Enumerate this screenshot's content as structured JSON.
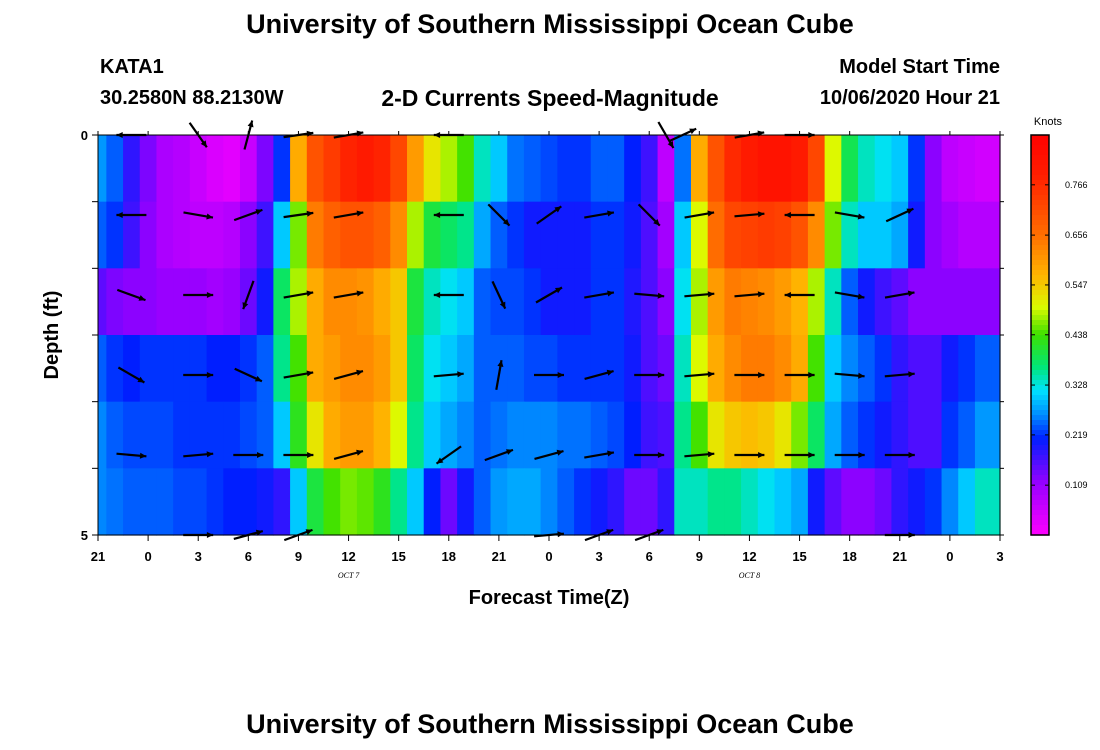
{
  "header": {
    "title": "University of Southern Mississippi Ocean Cube",
    "station": "KATA1",
    "coordinates": "30.2580N 88.2130W",
    "subtitle": "2-D Currents Speed-Magnitude",
    "model_start_label": "Model Start Time",
    "model_start_value": "10/06/2020 Hour 21"
  },
  "footer": {
    "title": "University of Southern Mississippi Ocean Cube"
  },
  "chart_data": {
    "type": "heatmap",
    "title": "2-D Currents Speed-Magnitude",
    "xlabel": "Forecast Time(Z)",
    "ylabel": "Depth (ft)",
    "ylim": [
      0,
      5
    ],
    "y_tick_labels": [
      "0",
      "5"
    ],
    "x_tick_labels": [
      "21",
      "0",
      "3",
      "6",
      "9",
      "12",
      "15",
      "18",
      "21",
      "0",
      "3",
      "6",
      "9",
      "12",
      "15",
      "18",
      "21",
      "0",
      "3"
    ],
    "date_labels": [
      {
        "text": "OCT 7",
        "tick_index": 5
      },
      {
        "text": "OCT 8",
        "tick_index": 13
      }
    ],
    "colorbar": {
      "label": "Knots",
      "range": [
        0,
        0.875
      ],
      "ticks": [
        "0.109",
        "0.219",
        "0.328",
        "0.438",
        "0.547",
        "0.656",
        "0.766"
      ]
    },
    "hours": [
      21,
      22,
      23,
      0,
      1,
      2,
      3,
      4,
      5,
      6,
      7,
      8,
      9,
      10,
      11,
      12,
      13,
      14,
      15,
      16,
      17,
      18,
      19,
      20,
      21,
      22,
      23,
      0,
      1,
      2,
      3,
      4,
      5,
      6,
      7,
      8,
      9,
      10,
      11,
      12,
      13,
      14,
      15,
      16,
      17,
      18,
      19,
      20,
      21,
      22,
      23,
      0,
      1,
      2,
      3
    ],
    "depth_rows": [
      0,
      1,
      2,
      3,
      4,
      5
    ],
    "speed_knots": [
      [
        0.27,
        0.24,
        0.18,
        0.13,
        0.09,
        0.08,
        0.06,
        0.04,
        0.03,
        0.06,
        0.13,
        0.22,
        0.58,
        0.7,
        0.74,
        0.78,
        0.8,
        0.78,
        0.72,
        0.6,
        0.52,
        0.48,
        0.44,
        0.34,
        0.3,
        0.25,
        0.24,
        0.23,
        0.22,
        0.22,
        0.24,
        0.24,
        0.21,
        0.17,
        0.07,
        0.25,
        0.58,
        0.7,
        0.77,
        0.8,
        0.82,
        0.82,
        0.8,
        0.72,
        0.5,
        0.39,
        0.34,
        0.32,
        0.3,
        0.22,
        0.12,
        0.07,
        0.06,
        0.05,
        0.05
      ],
      [
        0.24,
        0.22,
        0.17,
        0.12,
        0.09,
        0.08,
        0.07,
        0.07,
        0.08,
        0.12,
        0.17,
        0.3,
        0.46,
        0.64,
        0.68,
        0.7,
        0.7,
        0.68,
        0.62,
        0.48,
        0.4,
        0.38,
        0.36,
        0.28,
        0.24,
        0.22,
        0.2,
        0.2,
        0.2,
        0.2,
        0.22,
        0.22,
        0.2,
        0.16,
        0.1,
        0.3,
        0.5,
        0.66,
        0.72,
        0.73,
        0.74,
        0.73,
        0.7,
        0.62,
        0.46,
        0.34,
        0.3,
        0.3,
        0.28,
        0.2,
        0.12,
        0.1,
        0.08,
        0.08,
        0.08
      ],
      [
        0.15,
        0.13,
        0.12,
        0.12,
        0.11,
        0.11,
        0.11,
        0.1,
        0.11,
        0.14,
        0.2,
        0.38,
        0.48,
        0.58,
        0.62,
        0.62,
        0.61,
        0.58,
        0.55,
        0.4,
        0.34,
        0.32,
        0.3,
        0.24,
        0.23,
        0.23,
        0.22,
        0.2,
        0.2,
        0.2,
        0.22,
        0.22,
        0.19,
        0.16,
        0.12,
        0.32,
        0.48,
        0.6,
        0.64,
        0.63,
        0.62,
        0.6,
        0.57,
        0.48,
        0.34,
        0.24,
        0.2,
        0.17,
        0.15,
        0.12,
        0.12,
        0.12,
        0.12,
        0.12,
        0.12
      ],
      [
        0.24,
        0.22,
        0.21,
        0.22,
        0.22,
        0.22,
        0.22,
        0.21,
        0.21,
        0.22,
        0.24,
        0.36,
        0.44,
        0.58,
        0.6,
        0.62,
        0.62,
        0.6,
        0.55,
        0.38,
        0.32,
        0.3,
        0.28,
        0.24,
        0.24,
        0.24,
        0.23,
        0.23,
        0.22,
        0.22,
        0.22,
        0.22,
        0.2,
        0.16,
        0.14,
        0.34,
        0.5,
        0.58,
        0.62,
        0.64,
        0.64,
        0.62,
        0.58,
        0.44,
        0.3,
        0.26,
        0.24,
        0.22,
        0.18,
        0.16,
        0.16,
        0.2,
        0.22,
        0.24,
        0.24
      ],
      [
        0.26,
        0.24,
        0.23,
        0.23,
        0.23,
        0.22,
        0.22,
        0.22,
        0.22,
        0.23,
        0.24,
        0.3,
        0.42,
        0.52,
        0.58,
        0.6,
        0.6,
        0.57,
        0.5,
        0.36,
        0.3,
        0.28,
        0.26,
        0.24,
        0.25,
        0.26,
        0.26,
        0.26,
        0.25,
        0.25,
        0.24,
        0.23,
        0.21,
        0.17,
        0.16,
        0.36,
        0.44,
        0.52,
        0.55,
        0.56,
        0.55,
        0.52,
        0.46,
        0.38,
        0.28,
        0.24,
        0.22,
        0.2,
        0.18,
        0.16,
        0.16,
        0.22,
        0.24,
        0.27,
        0.27
      ],
      [
        0.26,
        0.25,
        0.24,
        0.24,
        0.24,
        0.23,
        0.23,
        0.22,
        0.21,
        0.21,
        0.2,
        0.18,
        0.3,
        0.4,
        0.44,
        0.46,
        0.45,
        0.42,
        0.36,
        0.3,
        0.21,
        0.14,
        0.2,
        0.24,
        0.27,
        0.28,
        0.28,
        0.26,
        0.24,
        0.22,
        0.2,
        0.18,
        0.14,
        0.14,
        0.18,
        0.34,
        0.34,
        0.36,
        0.36,
        0.34,
        0.32,
        0.3,
        0.28,
        0.2,
        0.15,
        0.12,
        0.12,
        0.14,
        0.18,
        0.2,
        0.22,
        0.26,
        0.3,
        0.34,
        0.34
      ]
    ],
    "vectors": [
      {
        "row": 0,
        "hour": 23,
        "direction_deg": 270,
        "speed_knots": 0.25
      },
      {
        "row": 0,
        "hour": 3,
        "direction_deg": 145,
        "speed_knots": 0.1
      },
      {
        "row": 0,
        "hour": 6,
        "direction_deg": 15,
        "speed_knots": 0.12
      },
      {
        "row": 0,
        "hour": 9,
        "direction_deg": 82,
        "speed_knots": 0.6
      },
      {
        "row": 0,
        "hour": 12,
        "direction_deg": 80,
        "speed_knots": 0.78
      },
      {
        "row": 0,
        "hour": 18,
        "direction_deg": 270,
        "speed_knots": 0.44
      },
      {
        "row": 0,
        "hour": 7,
        "direction_deg": 150,
        "speed_knots": 0.1
      },
      {
        "row": 0,
        "hour": 8,
        "direction_deg": 65,
        "speed_knots": 0.25
      },
      {
        "row": 0,
        "hour": 12,
        "direction_deg": 80,
        "speed_knots": 0.8
      },
      {
        "row": 0,
        "hour": 15,
        "direction_deg": 90,
        "speed_knots": 0.8
      },
      {
        "row": 1,
        "hour": 23,
        "direction_deg": 270,
        "speed_knots": 0.24
      },
      {
        "row": 1,
        "hour": 3,
        "direction_deg": 100,
        "speed_knots": 0.1
      },
      {
        "row": 1,
        "hour": 6,
        "direction_deg": 70,
        "speed_knots": 0.17
      },
      {
        "row": 1,
        "hour": 9,
        "direction_deg": 82,
        "speed_knots": 0.64
      },
      {
        "row": 1,
        "hour": 12,
        "direction_deg": 80,
        "speed_knots": 0.7
      },
      {
        "row": 1,
        "hour": 18,
        "direction_deg": 270,
        "speed_knots": 0.38
      },
      {
        "row": 1,
        "hour": 21,
        "direction_deg": 135,
        "speed_knots": 0.24
      },
      {
        "row": 1,
        "hour": 0,
        "direction_deg": 55,
        "speed_knots": 0.2
      },
      {
        "row": 1,
        "hour": 3,
        "direction_deg": 80,
        "speed_knots": 0.22
      },
      {
        "row": 1,
        "hour": 6,
        "direction_deg": 135,
        "speed_knots": 0.1
      },
      {
        "row": 1,
        "hour": 9,
        "direction_deg": 80,
        "speed_knots": 0.66
      },
      {
        "row": 1,
        "hour": 12,
        "direction_deg": 85,
        "speed_knots": 0.73
      },
      {
        "row": 1,
        "hour": 15,
        "direction_deg": 270,
        "speed_knots": 0.7
      },
      {
        "row": 1,
        "hour": 18,
        "direction_deg": 100,
        "speed_knots": 0.3
      },
      {
        "row": 1,
        "hour": 21,
        "direction_deg": 65,
        "speed_knots": 0.12
      },
      {
        "row": 2,
        "hour": 23,
        "direction_deg": 110,
        "speed_knots": 0.15
      },
      {
        "row": 2,
        "hour": 3,
        "direction_deg": 90,
        "speed_knots": 0.11
      },
      {
        "row": 2,
        "hour": 6,
        "direction_deg": 200,
        "speed_knots": 0.14
      },
      {
        "row": 2,
        "hour": 9,
        "direction_deg": 80,
        "speed_knots": 0.58
      },
      {
        "row": 2,
        "hour": 12,
        "direction_deg": 80,
        "speed_knots": 0.62
      },
      {
        "row": 2,
        "hour": 18,
        "direction_deg": 270,
        "speed_knots": 0.32
      },
      {
        "row": 2,
        "hour": 21,
        "direction_deg": 155,
        "speed_knots": 0.24
      },
      {
        "row": 2,
        "hour": 0,
        "direction_deg": 60,
        "speed_knots": 0.2
      },
      {
        "row": 2,
        "hour": 3,
        "direction_deg": 80,
        "speed_knots": 0.22
      },
      {
        "row": 2,
        "hour": 6,
        "direction_deg": 95,
        "speed_knots": 0.12
      },
      {
        "row": 2,
        "hour": 9,
        "direction_deg": 85,
        "speed_knots": 0.6
      },
      {
        "row": 2,
        "hour": 12,
        "direction_deg": 85,
        "speed_knots": 0.63
      },
      {
        "row": 2,
        "hour": 15,
        "direction_deg": 270,
        "speed_knots": 0.57
      },
      {
        "row": 2,
        "hour": 18,
        "direction_deg": 100,
        "speed_knots": 0.2
      },
      {
        "row": 2,
        "hour": 21,
        "direction_deg": 80,
        "speed_knots": 0.12
      },
      {
        "row": 3,
        "hour": 23,
        "direction_deg": 120,
        "speed_knots": 0.24
      },
      {
        "row": 3,
        "hour": 3,
        "direction_deg": 90,
        "speed_knots": 0.22
      },
      {
        "row": 3,
        "hour": 6,
        "direction_deg": 115,
        "speed_knots": 0.24
      },
      {
        "row": 3,
        "hour": 9,
        "direction_deg": 80,
        "speed_knots": 0.58
      },
      {
        "row": 3,
        "hour": 12,
        "direction_deg": 75,
        "speed_knots": 0.62
      },
      {
        "row": 3,
        "hour": 18,
        "direction_deg": 85,
        "speed_knots": 0.3
      },
      {
        "row": 3,
        "hour": 21,
        "direction_deg": 10,
        "speed_knots": 0.24
      },
      {
        "row": 3,
        "hour": 0,
        "direction_deg": 90,
        "speed_knots": 0.23
      },
      {
        "row": 3,
        "hour": 3,
        "direction_deg": 75,
        "speed_knots": 0.22
      },
      {
        "row": 3,
        "hour": 6,
        "direction_deg": 90,
        "speed_knots": 0.14
      },
      {
        "row": 3,
        "hour": 9,
        "direction_deg": 85,
        "speed_knots": 0.58
      },
      {
        "row": 3,
        "hour": 12,
        "direction_deg": 90,
        "speed_knots": 0.64
      },
      {
        "row": 3,
        "hour": 15,
        "direction_deg": 90,
        "speed_knots": 0.58
      },
      {
        "row": 3,
        "hour": 18,
        "direction_deg": 95,
        "speed_knots": 0.24
      },
      {
        "row": 3,
        "hour": 21,
        "direction_deg": 85,
        "speed_knots": 0.22
      },
      {
        "row": 4,
        "hour": 23,
        "direction_deg": 95,
        "speed_knots": 0.24
      },
      {
        "row": 4,
        "hour": 3,
        "direction_deg": 85,
        "speed_knots": 0.22
      },
      {
        "row": 4,
        "hour": 6,
        "direction_deg": 90,
        "speed_knots": 0.23
      },
      {
        "row": 4,
        "hour": 9,
        "direction_deg": 90,
        "speed_knots": 0.52
      },
      {
        "row": 4,
        "hour": 12,
        "direction_deg": 75,
        "speed_knots": 0.6
      },
      {
        "row": 4,
        "hour": 18,
        "direction_deg": 235,
        "speed_knots": 0.28
      },
      {
        "row": 4,
        "hour": 21,
        "direction_deg": 70,
        "speed_knots": 0.26
      },
      {
        "row": 4,
        "hour": 0,
        "direction_deg": 75,
        "speed_knots": 0.25
      },
      {
        "row": 4,
        "hour": 3,
        "direction_deg": 80,
        "speed_knots": 0.23
      },
      {
        "row": 4,
        "hour": 6,
        "direction_deg": 90,
        "speed_knots": 0.16
      },
      {
        "row": 4,
        "hour": 9,
        "direction_deg": 85,
        "speed_knots": 0.52
      },
      {
        "row": 4,
        "hour": 12,
        "direction_deg": 90,
        "speed_knots": 0.56
      },
      {
        "row": 4,
        "hour": 15,
        "direction_deg": 90,
        "speed_knots": 0.46
      },
      {
        "row": 4,
        "hour": 18,
        "direction_deg": 90,
        "speed_knots": 0.22
      },
      {
        "row": 4,
        "hour": 21,
        "direction_deg": 90,
        "speed_knots": 0.27
      },
      {
        "row": 5,
        "hour": 3,
        "direction_deg": 90,
        "speed_knots": 0.23
      },
      {
        "row": 5,
        "hour": 6,
        "direction_deg": 75,
        "speed_knots": 0.21
      },
      {
        "row": 5,
        "hour": 9,
        "direction_deg": 70,
        "speed_knots": 0.3
      },
      {
        "row": 5,
        "hour": 0,
        "direction_deg": 85,
        "speed_knots": 0.26
      },
      {
        "row": 5,
        "hour": 3,
        "direction_deg": 70,
        "speed_knots": 0.22
      },
      {
        "row": 5,
        "hour": 6,
        "direction_deg": 70,
        "speed_knots": 0.18
      },
      {
        "row": 5,
        "hour": 21,
        "direction_deg": 90,
        "speed_knots": 0.3
      }
    ]
  }
}
